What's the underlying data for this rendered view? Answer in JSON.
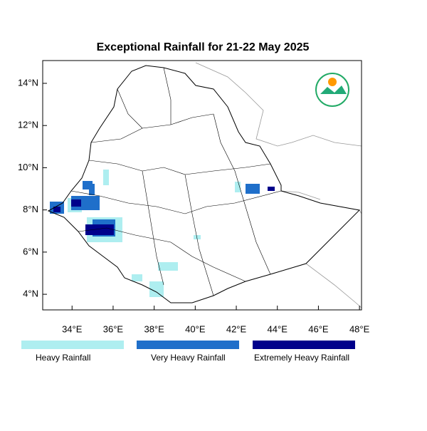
{
  "chart_data": {
    "type": "map",
    "title": "Exceptional Rainfall for 21-22 May 2025",
    "xlim": [
      32.57,
      48.1
    ],
    "ylim": [
      3.26,
      15.08
    ],
    "xticks": [
      {
        "value": 34,
        "label": "34°E"
      },
      {
        "value": 36,
        "label": "36°E"
      },
      {
        "value": 38,
        "label": "38°E"
      },
      {
        "value": 40,
        "label": "40°E"
      },
      {
        "value": 42,
        "label": "42°E"
      },
      {
        "value": 44,
        "label": "44°E"
      },
      {
        "value": 46,
        "label": "46°E"
      },
      {
        "value": 48,
        "label": "48°E"
      }
    ],
    "yticks": [
      {
        "value": 4,
        "label": "4°N"
      },
      {
        "value": 6,
        "label": "6°N"
      },
      {
        "value": 8,
        "label": "8°N"
      },
      {
        "value": 10,
        "label": "10°N"
      },
      {
        "value": 12,
        "label": "12°N"
      },
      {
        "value": 14,
        "label": "14°N"
      }
    ],
    "legend": [
      {
        "name": "Heavy Rainfall",
        "color": "#aeeef0"
      },
      {
        "name": "Very Heavy Rainfall",
        "color": "#1f6fca"
      },
      {
        "name": "Extremely Heavy Rainfall",
        "color": "#00008b"
      }
    ]
  }
}
